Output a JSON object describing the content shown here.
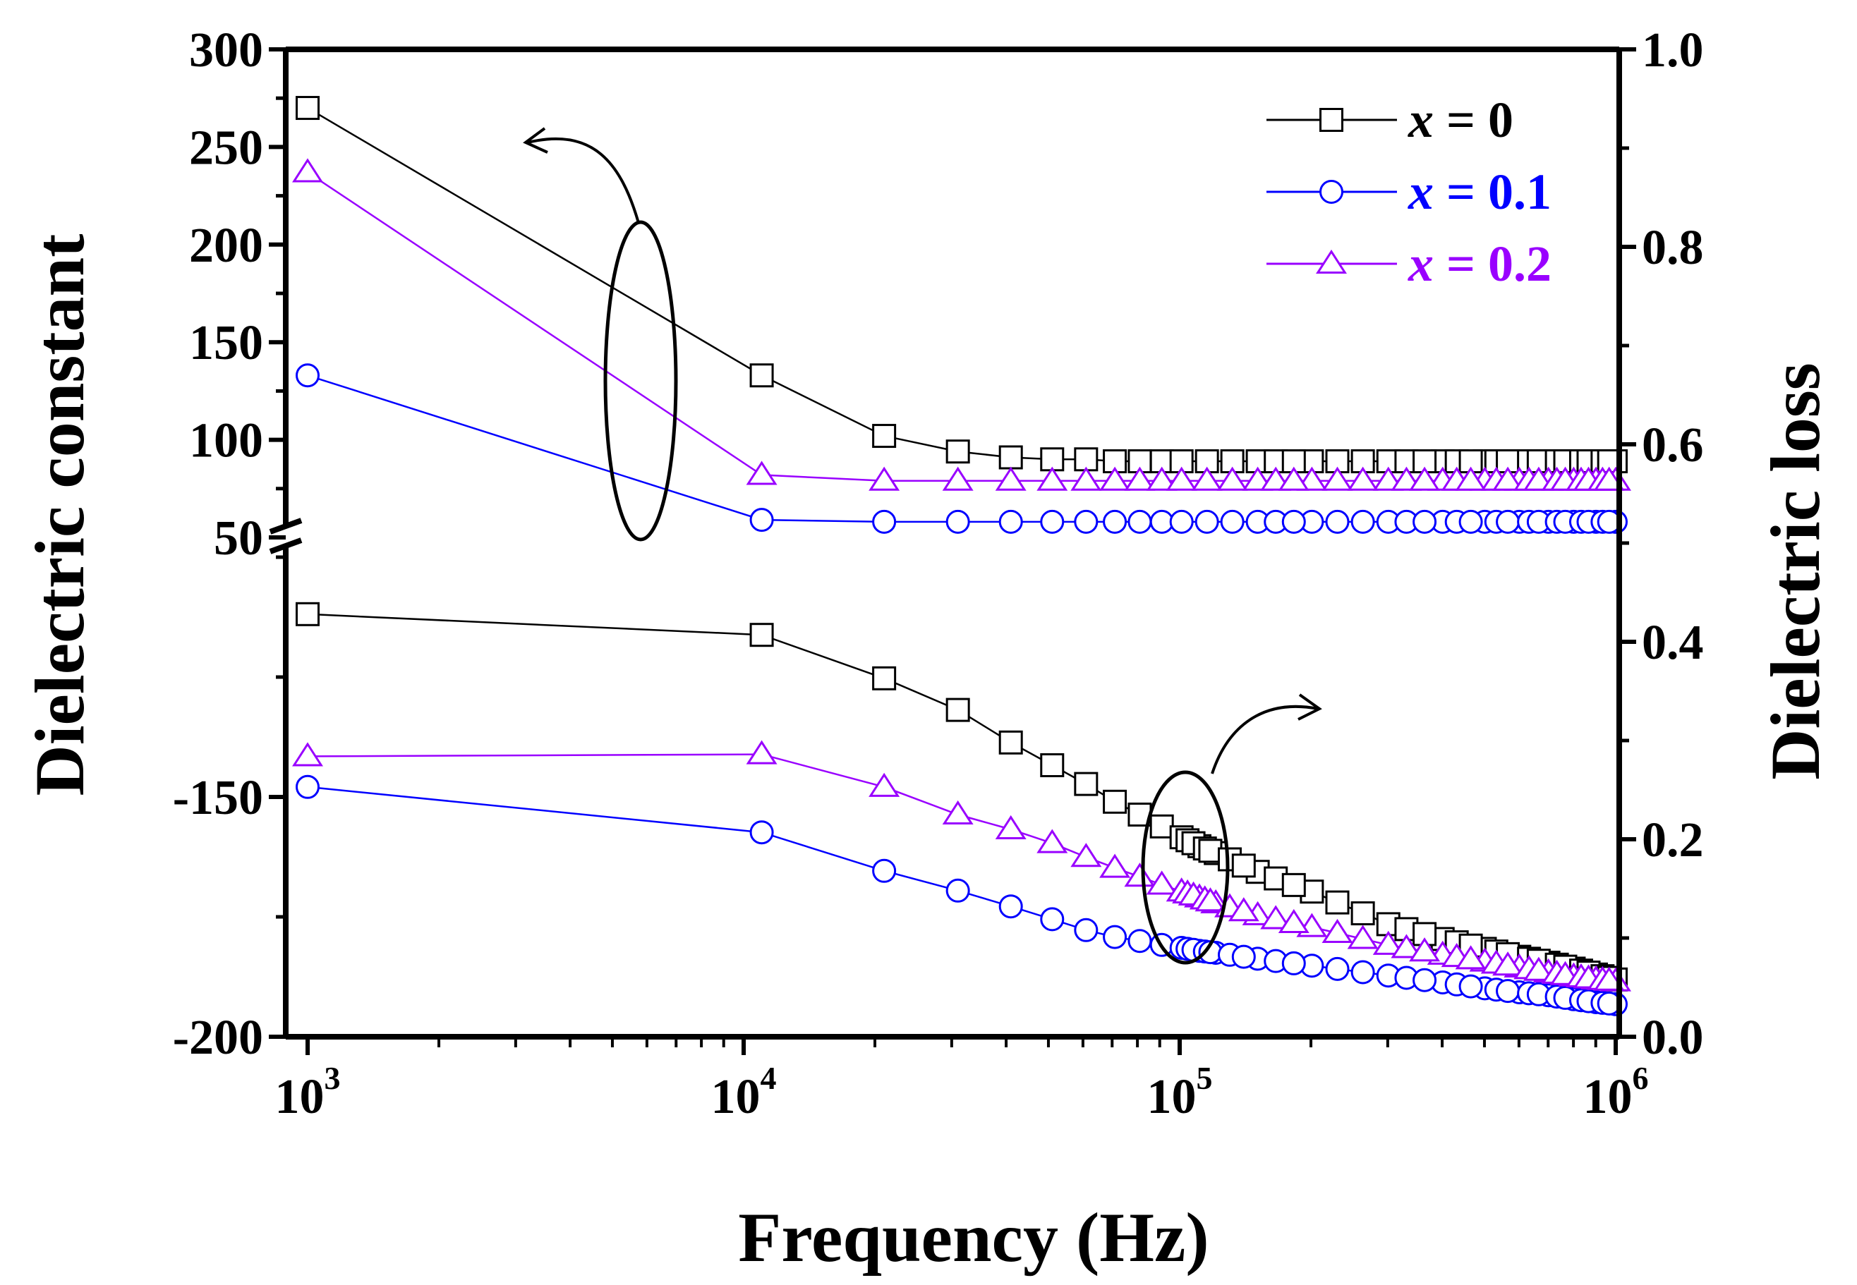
{
  "chart_data": {
    "type": "line",
    "xscale": "log",
    "xlabel": "Frequency (Hz)",
    "ylabel_left": "Dielectric constant",
    "ylabel_right": "Dielectric loss",
    "xlim": [
      900,
      1000000
    ],
    "x_ticks": [
      {
        "base": "10",
        "exp": "3",
        "value": 1000
      },
      {
        "base": "10",
        "exp": "4",
        "value": 10000
      },
      {
        "base": "10",
        "exp": "5",
        "value": 100000
      },
      {
        "base": "10",
        "exp": "6",
        "value": 1000000
      }
    ],
    "left_axis_upper": {
      "range": [
        50,
        300
      ],
      "ticks": [
        "300",
        "250",
        "200",
        "150",
        "100",
        "50"
      ]
    },
    "left_axis_lower": {
      "range": [
        -200,
        -95
      ],
      "ticks": [
        "-150",
        "-200"
      ]
    },
    "right_axis": {
      "range": [
        0.0,
        1.0
      ],
      "ticks": [
        "1.0",
        "0.8",
        "0.6",
        "0.4",
        "0.2",
        "0.0"
      ]
    },
    "legend": [
      {
        "label": "x = 0",
        "var": "x",
        "rest": " = 0",
        "color": "#000000",
        "marker": "square"
      },
      {
        "label": "x = 0.1",
        "var": "x",
        "rest": " = 0.1",
        "color": "#0000ff",
        "marker": "circle"
      },
      {
        "label": "x = 0.2",
        "var": "x",
        "rest": " = 0.2",
        "color": "#9900ff",
        "marker": "triangle"
      }
    ],
    "series": [
      {
        "name": "x = 0 (dielectric constant)",
        "axis": "left",
        "color": "#000000",
        "marker": "square",
        "x": [
          1000,
          11000,
          21000,
          31000,
          41000,
          51000,
          61000,
          71000,
          81000,
          91000,
          101000,
          151000,
          201000,
          301000,
          401000,
          501000,
          601000,
          701000,
          801000,
          901000,
          1000000
        ],
        "y": [
          270,
          133,
          102,
          94,
          91,
          90,
          90,
          89,
          89,
          89,
          89,
          89,
          89,
          89,
          89,
          89,
          89,
          89,
          89,
          89,
          89
        ]
      },
      {
        "name": "x = 0.1 (dielectric constant)",
        "axis": "left",
        "color": "#0000ff",
        "marker": "circle",
        "x": [
          1000,
          11000,
          21000,
          31000,
          41000,
          51000,
          61000,
          71000,
          81000,
          91000,
          101000,
          151000,
          201000,
          301000,
          401000,
          501000,
          601000,
          701000,
          801000,
          901000,
          1000000
        ],
        "y": [
          133,
          59,
          58,
          58,
          58,
          58,
          58,
          58,
          58,
          58,
          58,
          58,
          58,
          58,
          58,
          58,
          58,
          58,
          58,
          58,
          58
        ]
      },
      {
        "name": "x = 0.2 (dielectric constant)",
        "axis": "left",
        "color": "#9900ff",
        "marker": "triangle",
        "x": [
          1000,
          11000,
          21000,
          31000,
          41000,
          51000,
          61000,
          71000,
          81000,
          91000,
          101000,
          151000,
          201000,
          301000,
          401000,
          501000,
          601000,
          701000,
          801000,
          901000,
          1000000
        ],
        "y": [
          237,
          82,
          79,
          79,
          79,
          79,
          79,
          79,
          79,
          79,
          79,
          79,
          79,
          79,
          79,
          79,
          79,
          79,
          79,
          79,
          79
        ]
      },
      {
        "name": "x = 0 (dielectric loss)",
        "axis": "right",
        "color": "#000000",
        "marker": "square",
        "x": [
          1000,
          11000,
          21000,
          31000,
          41000,
          51000,
          61000,
          71000,
          81000,
          91000,
          101000,
          111000,
          121000,
          151000,
          201000,
          301000,
          401000,
          501000,
          601000,
          701000,
          801000,
          901000,
          1000000
        ],
        "y": [
          0.428,
          0.407,
          0.363,
          0.331,
          0.298,
          0.275,
          0.256,
          0.238,
          0.225,
          0.213,
          0.202,
          0.193,
          0.186,
          0.167,
          0.147,
          0.114,
          0.099,
          0.089,
          0.081,
          0.075,
          0.069,
          0.063,
          0.058
        ]
      },
      {
        "name": "x = 0.1 (dielectric loss)",
        "axis": "right",
        "color": "#0000ff",
        "marker": "circle",
        "x": [
          1000,
          11000,
          21000,
          31000,
          41000,
          51000,
          61000,
          71000,
          81000,
          91000,
          101000,
          111000,
          121000,
          151000,
          201000,
          301000,
          401000,
          501000,
          601000,
          701000,
          801000,
          901000,
          1000000
        ],
        "y": [
          0.253,
          0.207,
          0.168,
          0.148,
          0.132,
          0.119,
          0.108,
          0.101,
          0.097,
          0.093,
          0.09,
          0.087,
          0.085,
          0.079,
          0.072,
          0.062,
          0.055,
          0.049,
          0.045,
          0.042,
          0.038,
          0.035,
          0.033
        ]
      },
      {
        "name": "x = 0.2 (dielectric loss)",
        "axis": "right",
        "color": "#9900ff",
        "marker": "triangle",
        "x": [
          1000,
          11000,
          21000,
          31000,
          41000,
          51000,
          61000,
          71000,
          81000,
          91000,
          101000,
          111000,
          121000,
          151000,
          201000,
          301000,
          401000,
          501000,
          601000,
          701000,
          801000,
          901000,
          1000000
        ],
        "y": [
          0.284,
          0.286,
          0.253,
          0.225,
          0.21,
          0.196,
          0.182,
          0.171,
          0.162,
          0.154,
          0.147,
          0.141,
          0.135,
          0.123,
          0.111,
          0.093,
          0.083,
          0.076,
          0.07,
          0.065,
          0.061,
          0.058,
          0.056
        ]
      }
    ]
  }
}
